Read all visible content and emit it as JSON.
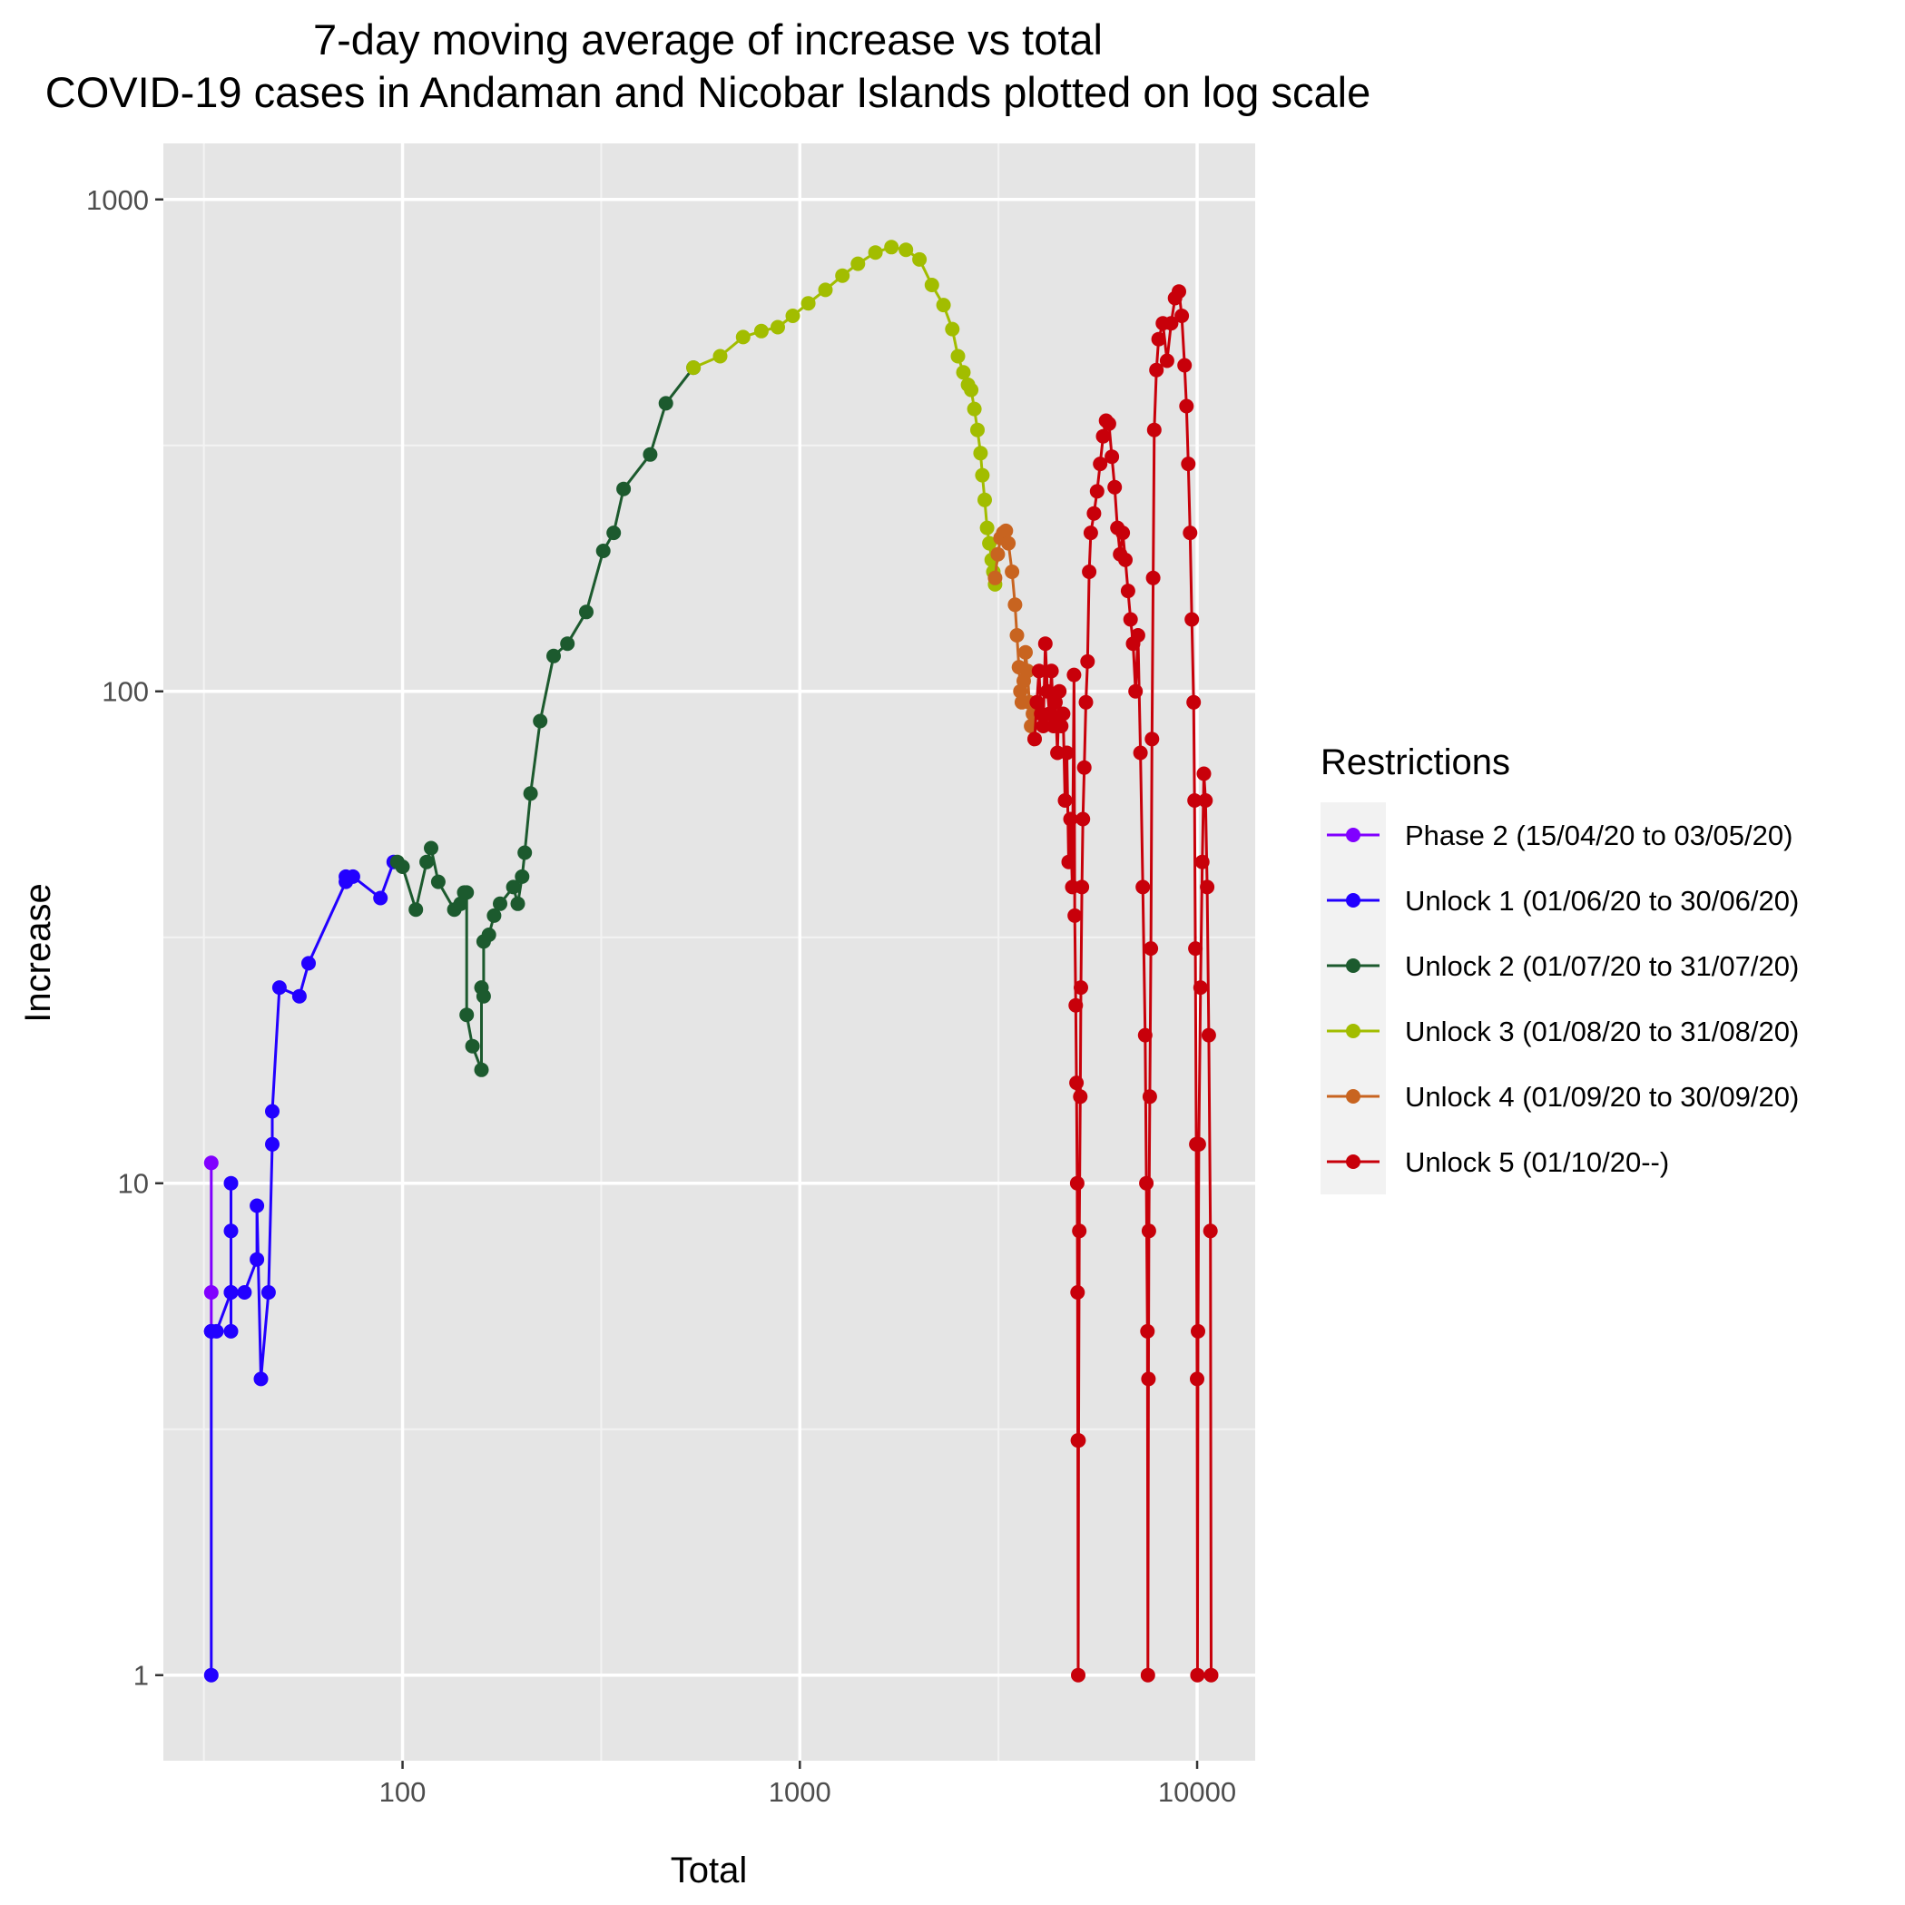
{
  "chart_data": {
    "type": "line",
    "title_lines": [
      "7-day moving average of increase vs total",
      "COVID-19 cases in Andaman and Nicobar Islands plotted on log scale"
    ],
    "xlabel": "Total",
    "ylabel": "Increase",
    "xscale": "log",
    "yscale": "log",
    "xlim": [
      25,
      14000
    ],
    "ylim": [
      0.67,
      1300
    ],
    "x_ticks": [
      {
        "value": 100,
        "label": "100"
      },
      {
        "value": 1000,
        "label": "1000"
      },
      {
        "value": 10000,
        "label": "10000"
      }
    ],
    "y_ticks": [
      {
        "value": 1,
        "label": "1"
      },
      {
        "value": 10,
        "label": "10"
      },
      {
        "value": 100,
        "label": "100"
      },
      {
        "value": 1000,
        "label": "1000"
      }
    ],
    "grid": true,
    "background": "#e5e5e5",
    "legend": {
      "title": "Restrictions",
      "placement": "right"
    },
    "series": [
      {
        "name": "Phase 2 (15/04/20 to 03/05/20)",
        "color": "#8000ff",
        "points": [
          [
            33,
            5
          ],
          [
            33,
            11
          ],
          [
            33,
            6
          ],
          [
            33,
            5
          ]
        ]
      },
      {
        "name": "Unlock 1 (01/06/20 to 30/06/20)",
        "color": "#2200ff",
        "points": [
          [
            33,
            5
          ],
          [
            33,
            1
          ],
          [
            33,
            5
          ],
          [
            34,
            5
          ],
          [
            37,
            6
          ],
          [
            37,
            10
          ],
          [
            37,
            5
          ],
          [
            37,
            8
          ],
          [
            37,
            6
          ],
          [
            40,
            6
          ],
          [
            43,
            7
          ],
          [
            43,
            9
          ],
          [
            44,
            4
          ],
          [
            46,
            6
          ],
          [
            47,
            12
          ],
          [
            47,
            14
          ],
          [
            49,
            25
          ],
          [
            55,
            24
          ],
          [
            58,
            28
          ],
          [
            72,
            41
          ],
          [
            72,
            42
          ],
          [
            75,
            42
          ],
          [
            88,
            38
          ],
          [
            95,
            45
          ]
        ]
      },
      {
        "name": "Unlock 2 (01/07/20 to 31/07/20)",
        "color": "#1c5a2e",
        "points": [
          [
            97,
            45
          ],
          [
            100,
            44
          ],
          [
            108,
            36
          ],
          [
            115,
            45
          ],
          [
            118,
            48
          ],
          [
            123,
            41
          ],
          [
            135,
            36
          ],
          [
            140,
            37
          ],
          [
            143,
            39
          ],
          [
            145,
            39
          ],
          [
            145,
            22
          ],
          [
            150,
            19
          ],
          [
            158,
            17
          ],
          [
            158,
            25
          ],
          [
            160,
            24
          ],
          [
            160,
            31
          ],
          [
            165,
            32
          ],
          [
            170,
            35
          ],
          [
            176,
            37
          ],
          [
            190,
            40
          ],
          [
            195,
            37
          ],
          [
            200,
            42
          ],
          [
            203,
            47
          ],
          [
            210,
            62
          ],
          [
            222,
            87
          ],
          [
            240,
            118
          ],
          [
            260,
            125
          ],
          [
            290,
            145
          ],
          [
            320,
            193
          ],
          [
            340,
            210
          ],
          [
            360,
            258
          ],
          [
            420,
            303
          ],
          [
            460,
            385
          ],
          [
            540,
            455
          ]
        ]
      },
      {
        "name": "Unlock 3 (01/08/20 to 31/08/20)",
        "color": "#a2bd00",
        "points": [
          [
            540,
            455
          ],
          [
            630,
            480
          ],
          [
            720,
            525
          ],
          [
            800,
            540
          ],
          [
            880,
            550
          ],
          [
            960,
            580
          ],
          [
            1050,
            615
          ],
          [
            1160,
            655
          ],
          [
            1280,
            700
          ],
          [
            1400,
            740
          ],
          [
            1550,
            780
          ],
          [
            1700,
            800
          ],
          [
            1850,
            790
          ],
          [
            2000,
            755
          ],
          [
            2150,
            670
          ],
          [
            2300,
            610
          ],
          [
            2420,
            545
          ],
          [
            2500,
            480
          ],
          [
            2580,
            445
          ],
          [
            2650,
            420
          ],
          [
            2700,
            410
          ],
          [
            2750,
            375
          ],
          [
            2800,
            340
          ],
          [
            2850,
            305
          ],
          [
            2880,
            275
          ],
          [
            2920,
            245
          ],
          [
            2960,
            215
          ],
          [
            3000,
            200
          ],
          [
            3040,
            185
          ],
          [
            3070,
            175
          ],
          [
            3100,
            165
          ]
        ]
      },
      {
        "name": "Unlock 4 (01/09/20 to 30/09/20)",
        "color": "#c86420",
        "points": [
          [
            3100,
            170
          ],
          [
            3150,
            190
          ],
          [
            3200,
            205
          ],
          [
            3250,
            210
          ],
          [
            3300,
            212
          ],
          [
            3350,
            200
          ],
          [
            3420,
            175
          ],
          [
            3480,
            150
          ],
          [
            3520,
            130
          ],
          [
            3560,
            112
          ],
          [
            3590,
            100
          ],
          [
            3620,
            95
          ],
          [
            3660,
            105
          ],
          [
            3700,
            120
          ],
          [
            3740,
            110
          ],
          [
            3780,
            95
          ],
          [
            3820,
            85
          ],
          [
            3860,
            90
          ],
          [
            3900,
            80
          ]
        ]
      },
      {
        "name": "Unlock 5 (01/10/20--)",
        "color": "#c8000a",
        "points": [
          [
            3900,
            80
          ],
          [
            3950,
            95
          ],
          [
            4000,
            110
          ],
          [
            4050,
            90
          ],
          [
            4100,
            85
          ],
          [
            4150,
            125
          ],
          [
            4200,
            100
          ],
          [
            4250,
            90
          ],
          [
            4300,
            110
          ],
          [
            4350,
            85
          ],
          [
            4400,
            95
          ],
          [
            4450,
            75
          ],
          [
            4500,
            100
          ],
          [
            4550,
            85
          ],
          [
            4600,
            90
          ],
          [
            4650,
            60
          ],
          [
            4700,
            75
          ],
          [
            4750,
            45
          ],
          [
            4800,
            55
          ],
          [
            4850,
            40
          ],
          [
            4900,
            108
          ],
          [
            4920,
            35
          ],
          [
            4950,
            23
          ],
          [
            4970,
            16
          ],
          [
            4990,
            10
          ],
          [
            5000,
            6
          ],
          [
            5010,
            3
          ],
          [
            5020,
            1
          ],
          [
            5030,
            3
          ],
          [
            5050,
            8
          ],
          [
            5080,
            15
          ],
          [
            5100,
            25
          ],
          [
            5130,
            40
          ],
          [
            5160,
            55
          ],
          [
            5200,
            70
          ],
          [
            5250,
            95
          ],
          [
            5300,
            115
          ],
          [
            5350,
            175
          ],
          [
            5400,
            210
          ],
          [
            5500,
            230
          ],
          [
            5600,
            255
          ],
          [
            5700,
            290
          ],
          [
            5800,
            330
          ],
          [
            5900,
            355
          ],
          [
            6000,
            350
          ],
          [
            6100,
            300
          ],
          [
            6200,
            260
          ],
          [
            6300,
            215
          ],
          [
            6400,
            190
          ],
          [
            6500,
            210
          ],
          [
            6600,
            185
          ],
          [
            6700,
            160
          ],
          [
            6800,
            140
          ],
          [
            6900,
            125
          ],
          [
            7000,
            100
          ],
          [
            7100,
            130
          ],
          [
            7200,
            75
          ],
          [
            7300,
            40
          ],
          [
            7400,
            20
          ],
          [
            7450,
            10
          ],
          [
            7500,
            5
          ],
          [
            7520,
            1
          ],
          [
            7540,
            4
          ],
          [
            7560,
            8
          ],
          [
            7600,
            15
          ],
          [
            7650,
            30
          ],
          [
            7700,
            80
          ],
          [
            7750,
            170
          ],
          [
            7800,
            340
          ],
          [
            7900,
            450
          ],
          [
            8000,
            520
          ],
          [
            8200,
            560
          ],
          [
            8400,
            470
          ],
          [
            8600,
            560
          ],
          [
            8800,
            630
          ],
          [
            9000,
            650
          ],
          [
            9150,
            580
          ],
          [
            9300,
            460
          ],
          [
            9400,
            380
          ],
          [
            9500,
            290
          ],
          [
            9600,
            210
          ],
          [
            9700,
            140
          ],
          [
            9800,
            95
          ],
          [
            9850,
            60
          ],
          [
            9900,
            30
          ],
          [
            9950,
            12
          ],
          [
            10000,
            4
          ],
          [
            10020,
            1
          ],
          [
            10050,
            5
          ],
          [
            10100,
            12
          ],
          [
            10200,
            25
          ],
          [
            10300,
            45
          ],
          [
            10400,
            68
          ],
          [
            10500,
            60
          ],
          [
            10600,
            40
          ],
          [
            10700,
            20
          ],
          [
            10800,
            8
          ],
          [
            10850,
            1
          ]
        ]
      }
    ]
  }
}
